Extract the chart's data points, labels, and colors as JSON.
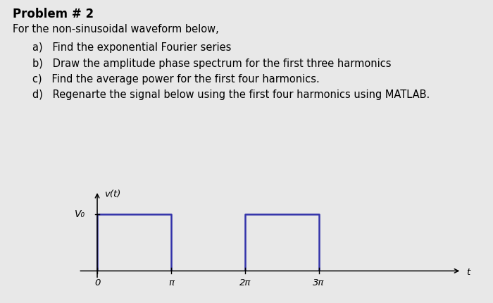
{
  "title": "Problem # 2",
  "subtitle": "For the non-sinusoidal waveform below,",
  "items": [
    "a)   Find the exponential Fourier series",
    "b)   Draw the amplitude phase spectrum for the first three harmonics",
    "c)   Find the average power for the first four harmonics.",
    "d)   Regenarte the signal below using the first four harmonics using MATLAB."
  ],
  "ylabel": "v(t)",
  "xlabel": "t",
  "vo_label": "V₀",
  "x_ticks": [
    0,
    3.14159,
    6.28318,
    9.42478
  ],
  "x_tick_labels": [
    "0",
    "π",
    "2π",
    "3π"
  ],
  "background_color": "#e8e8e8",
  "waveform_color": "#3333aa",
  "waveform_segments": [
    {
      "x": [
        0,
        0,
        3.14159,
        3.14159
      ],
      "y": [
        0,
        1,
        1,
        0
      ]
    },
    {
      "x": [
        6.28318,
        6.28318,
        9.42478,
        9.42478
      ],
      "y": [
        0,
        1,
        1,
        0
      ]
    }
  ],
  "xlim": [
    -1.2,
    16.0
  ],
  "ylim": [
    -0.22,
    1.5
  ],
  "title_fontsize": 12,
  "body_fontsize": 10.5
}
